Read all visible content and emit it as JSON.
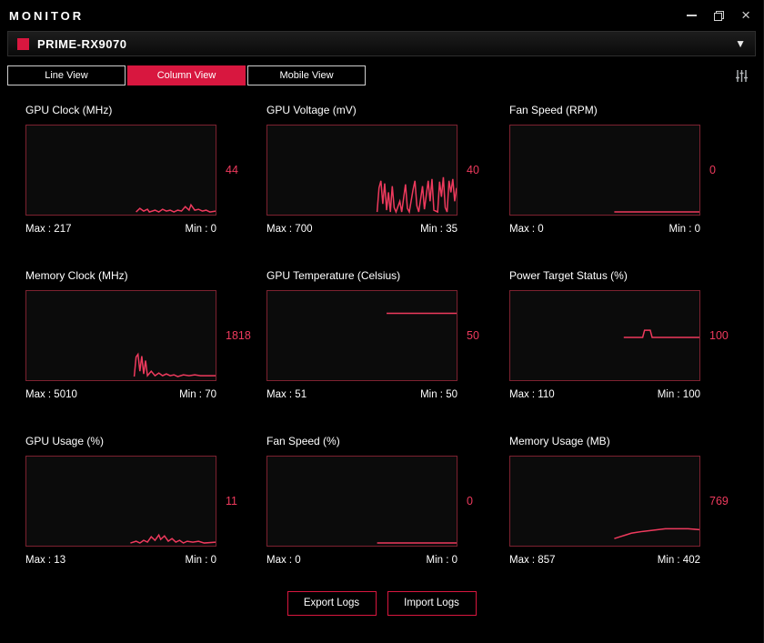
{
  "window": {
    "title": "MONITOR",
    "controls": {
      "minimize_icon": "minimize-icon",
      "restore_icon": "restore-icon",
      "close_icon": "close-icon",
      "close_glyph": "×"
    }
  },
  "device_bar": {
    "name": "PRIME-RX9070",
    "logo_icon": "red-square-logo-icon",
    "dropdown_glyph": "▼"
  },
  "tabs": [
    {
      "label": "Line View",
      "active": false
    },
    {
      "label": "Column View",
      "active": true
    },
    {
      "label": "Mobile View",
      "active": false
    }
  ],
  "filter_icon": "sliders-icon",
  "colors": {
    "accent": "#d8173f",
    "chart_border": "#7d2230",
    "trace": "#ee3a5d",
    "value_text": "#ee3a5d"
  },
  "chart_data": {
    "type": "line",
    "note": "nine realtime GPU monitor strip charts, values listed per chart in charts[]"
  },
  "charts": [
    {
      "title": "GPU Clock (MHz)",
      "current": "44",
      "max_label": "Max : 217",
      "min_label": "Min : 0",
      "trace": [
        [
          58,
          97
        ],
        [
          60,
          93
        ],
        [
          62,
          96
        ],
        [
          64,
          94
        ],
        [
          65,
          97
        ],
        [
          68,
          95
        ],
        [
          70,
          97
        ],
        [
          72,
          94
        ],
        [
          74,
          96
        ],
        [
          76,
          95
        ],
        [
          78,
          97
        ],
        [
          80,
          95
        ],
        [
          82,
          96
        ],
        [
          84,
          91
        ],
        [
          86,
          95
        ],
        [
          87,
          89
        ],
        [
          89,
          95
        ],
        [
          91,
          94
        ],
        [
          93,
          96
        ],
        [
          95,
          95
        ],
        [
          97,
          97
        ],
        [
          100,
          96
        ]
      ]
    },
    {
      "title": "GPU Voltage (mV)",
      "current": "40",
      "max_label": "Max : 700",
      "min_label": "Min : 35",
      "trace": [
        [
          58,
          97
        ],
        [
          59,
          70
        ],
        [
          60,
          62
        ],
        [
          61,
          88
        ],
        [
          62,
          65
        ],
        [
          63,
          95
        ],
        [
          64,
          75
        ],
        [
          65,
          97
        ],
        [
          66,
          68
        ],
        [
          67,
          92
        ],
        [
          68,
          97
        ],
        [
          70,
          85
        ],
        [
          71,
          97
        ],
        [
          73,
          66
        ],
        [
          74,
          93
        ],
        [
          75,
          97
        ],
        [
          77,
          72
        ],
        [
          78,
          62
        ],
        [
          79,
          90
        ],
        [
          80,
          97
        ],
        [
          82,
          68
        ],
        [
          83,
          94
        ],
        [
          85,
          62
        ],
        [
          86,
          85
        ],
        [
          87,
          60
        ],
        [
          88,
          95
        ],
        [
          90,
          97
        ],
        [
          91,
          63
        ],
        [
          92,
          80
        ],
        [
          93,
          58
        ],
        [
          94,
          92
        ],
        [
          95,
          97
        ],
        [
          96,
          62
        ],
        [
          97,
          75
        ],
        [
          98,
          60
        ],
        [
          99,
          85
        ],
        [
          100,
          70
        ]
      ]
    },
    {
      "title": "Fan Speed (RPM)",
      "current": "0",
      "max_label": "Max : 0",
      "min_label": "Min : 0",
      "trace": [
        [
          55,
          97
        ],
        [
          100,
          97
        ]
      ]
    },
    {
      "title": "Memory Clock (MHz)",
      "current": "1818",
      "max_label": "Max : 5010",
      "min_label": "Min : 70",
      "trace": [
        [
          57,
          96
        ],
        [
          58,
          74
        ],
        [
          59,
          71
        ],
        [
          60,
          90
        ],
        [
          61,
          73
        ],
        [
          62,
          93
        ],
        [
          63,
          78
        ],
        [
          64,
          95
        ],
        [
          66,
          90
        ],
        [
          68,
          95
        ],
        [
          70,
          92
        ],
        [
          72,
          95
        ],
        [
          74,
          93
        ],
        [
          76,
          95
        ],
        [
          78,
          94
        ],
        [
          80,
          96
        ],
        [
          83,
          94
        ],
        [
          86,
          95
        ],
        [
          89,
          94
        ],
        [
          92,
          95
        ],
        [
          96,
          95
        ],
        [
          100,
          95
        ]
      ]
    },
    {
      "title": "GPU Temperature (Celsius)",
      "current": "50",
      "max_label": "Max : 51",
      "min_label": "Min : 50",
      "trace": [
        [
          63,
          25
        ],
        [
          100,
          25
        ]
      ]
    },
    {
      "title": "Power Target Status (%)",
      "current": "100",
      "max_label": "Max : 110",
      "min_label": "Min : 100",
      "trace": [
        [
          60,
          52
        ],
        [
          70,
          52
        ],
        [
          71,
          44
        ],
        [
          74,
          44
        ],
        [
          75,
          52
        ],
        [
          100,
          52
        ]
      ]
    },
    {
      "title": "GPU Usage (%)",
      "current": "11",
      "max_label": "Max : 13",
      "min_label": "Min : 0",
      "trace": [
        [
          55,
          97
        ],
        [
          58,
          95
        ],
        [
          60,
          97
        ],
        [
          62,
          94
        ],
        [
          64,
          96
        ],
        [
          66,
          90
        ],
        [
          68,
          94
        ],
        [
          70,
          88
        ],
        [
          71,
          93
        ],
        [
          73,
          89
        ],
        [
          75,
          95
        ],
        [
          77,
          92
        ],
        [
          79,
          96
        ],
        [
          81,
          94
        ],
        [
          83,
          97
        ],
        [
          85,
          95
        ],
        [
          88,
          96
        ],
        [
          91,
          95
        ],
        [
          94,
          97
        ],
        [
          100,
          96
        ]
      ]
    },
    {
      "title": "Fan Speed (%)",
      "current": "0",
      "max_label": "Max : 0",
      "min_label": "Min : 0",
      "trace": [
        [
          58,
          97
        ],
        [
          100,
          97
        ]
      ]
    },
    {
      "title": "Memory Usage (MB)",
      "current": "769",
      "max_label": "Max : 857",
      "min_label": "Min : 402",
      "trace": [
        [
          55,
          92
        ],
        [
          58,
          90
        ],
        [
          61,
          88
        ],
        [
          64,
          86
        ],
        [
          67,
          85
        ],
        [
          70,
          84
        ],
        [
          74,
          83
        ],
        [
          78,
          82
        ],
        [
          82,
          81
        ],
        [
          86,
          81
        ],
        [
          90,
          81
        ],
        [
          94,
          81
        ],
        [
          100,
          82
        ]
      ]
    }
  ],
  "footer": {
    "export_label": "Export Logs",
    "import_label": "Import Logs"
  }
}
